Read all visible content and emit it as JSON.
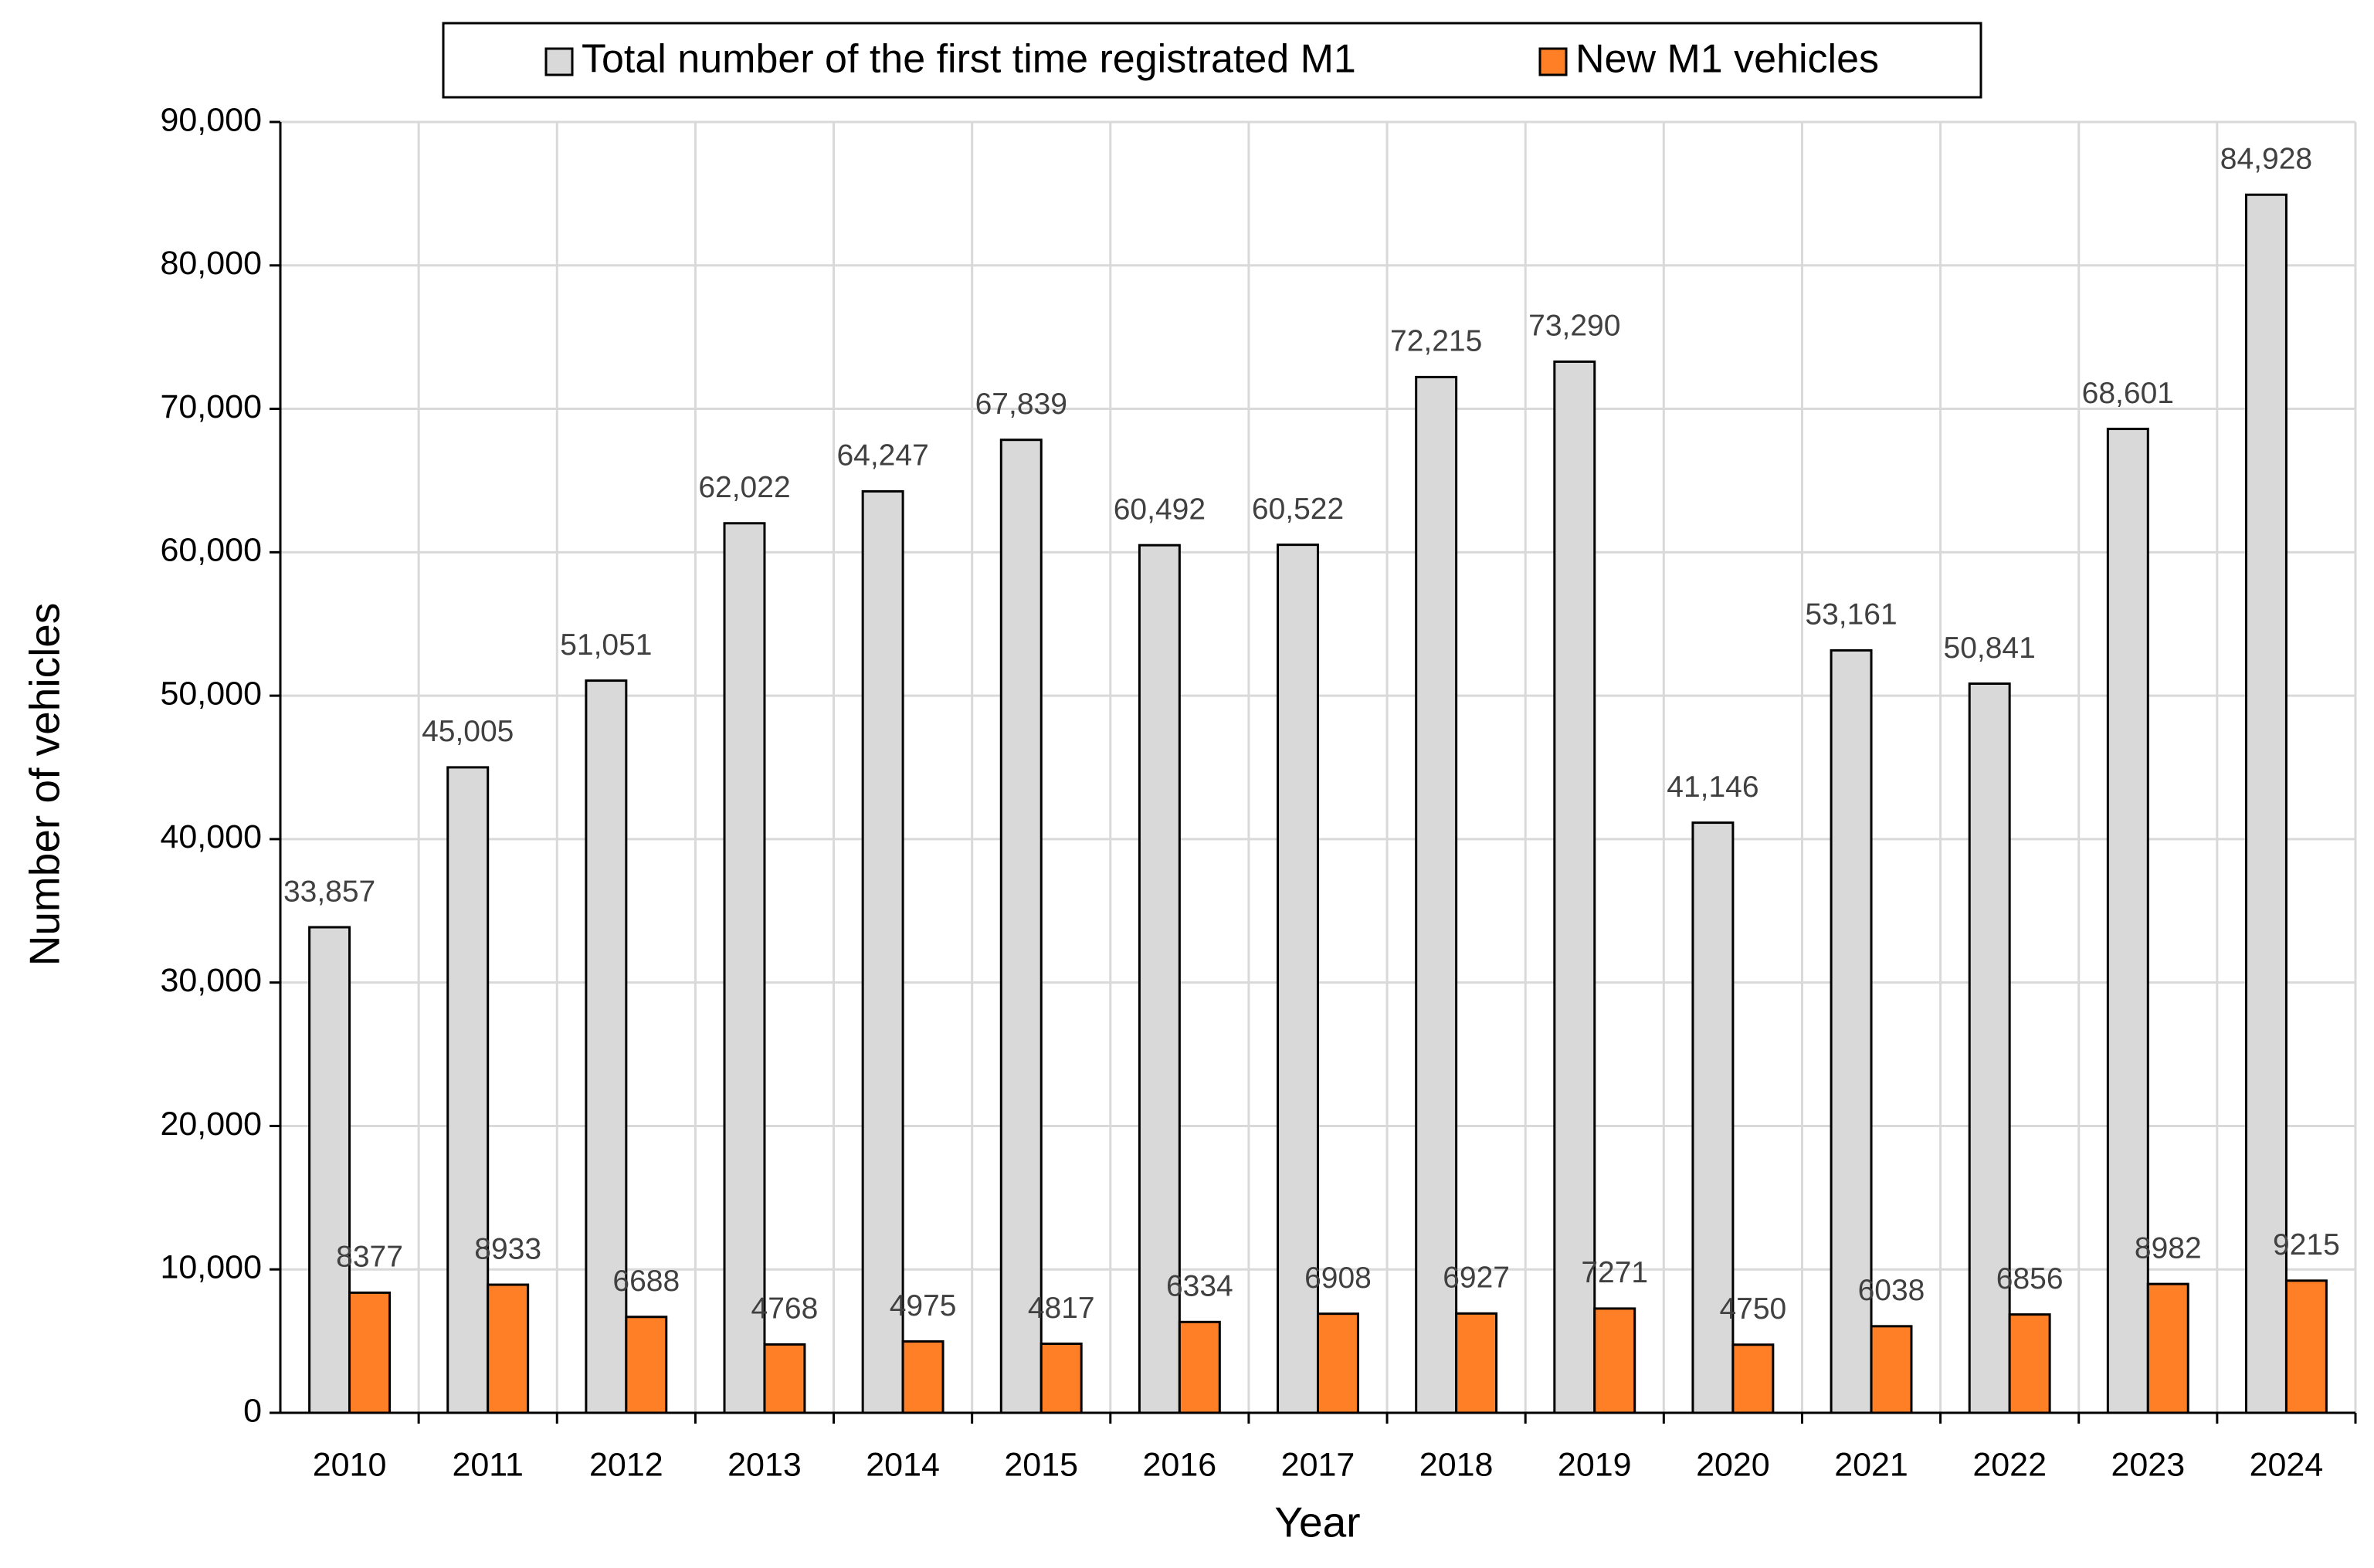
{
  "chart_data": {
    "type": "bar",
    "x_label": "Year",
    "y_label": "Number of vehicles",
    "categories": [
      "2010",
      "2011",
      "2012",
      "2013",
      "2014",
      "2015",
      "2016",
      "2017",
      "2018",
      "2019",
      "2020",
      "2021",
      "2022",
      "2023",
      "2024"
    ],
    "series": [
      {
        "name": "Total number of the first time registrated M1",
        "color": "#d9d9d9",
        "values": [
          33857,
          45005,
          51051,
          62022,
          64247,
          67839,
          60492,
          60522,
          72215,
          73290,
          41146,
          53161,
          50841,
          68601,
          84928
        ],
        "value_labels": [
          "33,857",
          "45,005",
          "51,051",
          "62,022",
          "64,247",
          "67,839",
          "60,492",
          "60,522",
          "72,215",
          "73,290",
          "41,146",
          "53,161",
          "50,841",
          "68,601",
          "84,928"
        ]
      },
      {
        "name": "New M1 vehicles",
        "color": "#ff7f27",
        "values": [
          8377,
          8933,
          6688,
          4768,
          4975,
          4817,
          6334,
          6908,
          6927,
          7271,
          4750,
          6038,
          6856,
          8982,
          9215
        ]
      }
    ],
    "ylim": [
      0,
      90000
    ],
    "yticks": [
      0,
      {
        "value": 10000,
        "label": "10,000"
      },
      {
        "value": 20000,
        "label": "20,000"
      },
      {
        "value": 30000,
        "label": "30,000"
      },
      {
        "value": 40000,
        "label": "40,000"
      },
      {
        "value": 50000,
        "label": "50,000"
      },
      {
        "value": 60000,
        "label": "60,000"
      },
      {
        "value": 70000,
        "label": "70,000"
      },
      {
        "value": 80000,
        "label": "80,000"
      },
      {
        "value": 90000,
        "label": "90,000"
      }
    ],
    "grid": true,
    "legend_position": "top"
  }
}
